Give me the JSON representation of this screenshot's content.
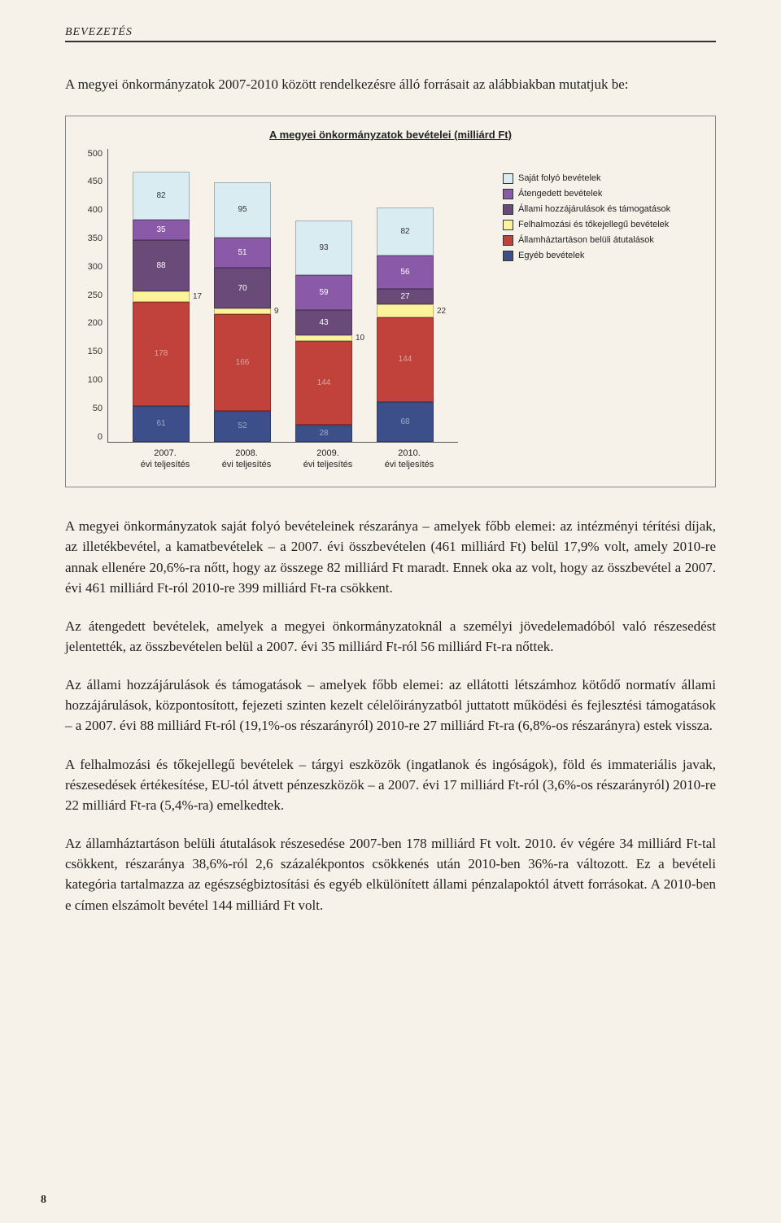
{
  "header": "BEVEZETÉS",
  "intro": "A megyei önkormányzatok 2007-2010 között rendelkezésre álló forrásait az alábbiakban mutatjuk be:",
  "page_number": "8",
  "chart": {
    "type": "stacked-bar",
    "title": "A megyei önkormányzatok bevételei (milliárd Ft)",
    "y_max": 500,
    "y_ticks": [
      500,
      450,
      400,
      350,
      300,
      250,
      200,
      150,
      100,
      50,
      0
    ],
    "categories": [
      "2007. évi teljesítés",
      "2008. évi teljesítés",
      "2009. évi teljesítés",
      "2010. évi teljesítés"
    ],
    "series_order_bottom_to_top": [
      "egyeb",
      "allamhaz",
      "felhalm",
      "allami",
      "atenged",
      "sajat"
    ],
    "colors": {
      "sajat": "#d8ecf2",
      "atenged": "#8a5aa8",
      "allami": "#6a4a78",
      "felhalm": "#fdf39a",
      "allamhaz": "#c0423b",
      "egyeb": "#3d4f8a"
    },
    "bars": [
      {
        "egyeb": 61,
        "allamhaz": 178,
        "felhalm": 17,
        "allami": 88,
        "atenged": 35,
        "sajat": 82,
        "side_labels": {
          "felhalm": 17
        }
      },
      {
        "egyeb": 52,
        "allamhaz": 166,
        "felhalm": 9,
        "allami": 70,
        "atenged": 51,
        "sajat": 95,
        "side_labels": {
          "felhalm": 9
        }
      },
      {
        "egyeb": 28,
        "allamhaz": 144,
        "felhalm": 10,
        "allami": 43,
        "atenged": 59,
        "sajat": 93,
        "side_labels": {
          "felhalm": 10
        }
      },
      {
        "egyeb": 68,
        "allamhaz": 144,
        "felhalm": 22,
        "allami": 27,
        "atenged": 56,
        "sajat": 82,
        "side_labels": {
          "felhalm": 22
        }
      }
    ],
    "legend": [
      {
        "key": "sajat",
        "label": "Saját folyó bevételek"
      },
      {
        "key": "atenged",
        "label": "Átengedett bevételek"
      },
      {
        "key": "allami",
        "label": "Állami hozzájárulások és támogatások"
      },
      {
        "key": "felhalm",
        "label": "Felhalmozási és tőkejellegű bevételek"
      },
      {
        "key": "allamhaz",
        "label": "Államháztartáson belüli átutalások"
      },
      {
        "key": "egyeb",
        "label": "Egyéb bevételek"
      }
    ]
  },
  "paragraphs": [
    "A megyei önkormányzatok saját folyó bevételeinek részaránya – amelyek főbb elemei: az intézményi térítési díjak, az illetékbevétel, a kamatbevételek – a 2007. évi összbevételen (461 milliárd Ft) belül 17,9% volt, amely 2010-re annak ellenére 20,6%-ra nőtt, hogy az összege 82 milliárd Ft maradt. Ennek oka az volt, hogy az összbevétel a 2007. évi 461 milliárd Ft-ról 2010-re 399 milliárd Ft-ra csökkent.",
    "Az átengedett bevételek, amelyek a megyei önkormányzatoknál a személyi jövedelemadóból való részesedést jelentették, az összbevételen belül a 2007. évi 35 milliárd Ft-ról 56 milliárd Ft-ra nőttek.",
    "Az állami hozzájárulások és támogatások – amelyek főbb elemei: az ellátotti létszámhoz kötődő normatív állami hozzájárulások, központosított, fejezeti szinten kezelt célelőirányzatból juttatott működési és fejlesztési támogatások – a 2007. évi 88 milliárd Ft-ról (19,1%-os részarányról) 2010-re 27 milliárd Ft-ra (6,8%-os részarányra) estek vissza.",
    "A felhalmozási és tőkejellegű bevételek – tárgyi eszközök (ingatlanok és ingóságok), föld és immateriális javak, részesedések értékesítése, EU-tól átvett pénzeszközök – a 2007. évi 17 milliárd Ft-ról (3,6%-os részarányról) 2010-re 22 milliárd Ft-ra (5,4%-ra) emelkedtek.",
    "Az államháztartáson belüli átutalások részesedése 2007-ben 178 milliárd Ft volt. 2010. év végére 34 milliárd Ft-tal csökkent, részaránya 38,6%-ról 2,6 százalékpontos csökkenés után 2010-ben 36%-ra változott. Ez a bevételi kategória tartalmazza az egészségbiztosítási és egyéb elkülönített állami pénzalapoktól átvett forrásokat. A 2010-ben e címen elszámolt bevétel 144 milliárd Ft volt."
  ]
}
